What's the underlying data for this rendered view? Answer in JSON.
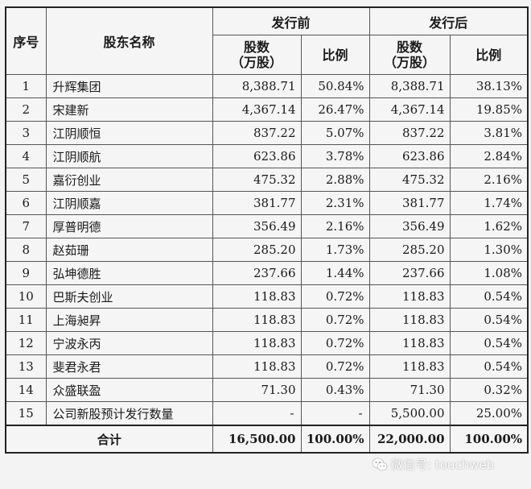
{
  "header": {
    "seq": "序号",
    "holder": "股东名称",
    "before": "发行前",
    "after": "发行后",
    "shares_line1": "股数",
    "shares_line2": "（万股）",
    "ratio": "比例"
  },
  "rows": [
    {
      "no": "1",
      "name": "升辉集团",
      "before_shares": "8,388.71",
      "before_ratio": "50.84%",
      "after_shares": "8,388.71",
      "after_ratio": "38.13%"
    },
    {
      "no": "2",
      "name": "宋建新",
      "before_shares": "4,367.14",
      "before_ratio": "26.47%",
      "after_shares": "4,367.14",
      "after_ratio": "19.85%"
    },
    {
      "no": "3",
      "name": "江阴顺恒",
      "before_shares": "837.22",
      "before_ratio": "5.07%",
      "after_shares": "837.22",
      "after_ratio": "3.81%"
    },
    {
      "no": "4",
      "name": "江阴顺航",
      "before_shares": "623.86",
      "before_ratio": "3.78%",
      "after_shares": "623.86",
      "after_ratio": "2.84%"
    },
    {
      "no": "5",
      "name": "嘉衍创业",
      "before_shares": "475.32",
      "before_ratio": "2.88%",
      "after_shares": "475.32",
      "after_ratio": "2.16%"
    },
    {
      "no": "6",
      "name": "江阴顺嘉",
      "before_shares": "381.77",
      "before_ratio": "2.31%",
      "after_shares": "381.77",
      "after_ratio": "1.74%"
    },
    {
      "no": "7",
      "name": "厚普明德",
      "before_shares": "356.49",
      "before_ratio": "2.16%",
      "after_shares": "356.49",
      "after_ratio": "1.62%"
    },
    {
      "no": "8",
      "name": "赵茹珊",
      "before_shares": "285.20",
      "before_ratio": "1.73%",
      "after_shares": "285.20",
      "after_ratio": "1.30%"
    },
    {
      "no": "9",
      "name": "弘坤德胜",
      "before_shares": "237.66",
      "before_ratio": "1.44%",
      "after_shares": "237.66",
      "after_ratio": "1.08%"
    },
    {
      "no": "10",
      "name": "巴斯夫创业",
      "before_shares": "118.83",
      "before_ratio": "0.72%",
      "after_shares": "118.83",
      "after_ratio": "0.54%"
    },
    {
      "no": "11",
      "name": "上海昶昇",
      "before_shares": "118.83",
      "before_ratio": "0.72%",
      "after_shares": "118.83",
      "after_ratio": "0.54%"
    },
    {
      "no": "12",
      "name": "宁波永丙",
      "before_shares": "118.83",
      "before_ratio": "0.72%",
      "after_shares": "118.83",
      "after_ratio": "0.54%"
    },
    {
      "no": "13",
      "name": "斐君永君",
      "before_shares": "118.83",
      "before_ratio": "0.72%",
      "after_shares": "118.83",
      "after_ratio": "0.54%"
    },
    {
      "no": "14",
      "name": "众盛联盈",
      "before_shares": "71.30",
      "before_ratio": "0.43%",
      "after_shares": "71.30",
      "after_ratio": "0.32%"
    },
    {
      "no": "15",
      "name": "公司新股预计发行数量",
      "before_shares": "-",
      "before_ratio": "-",
      "after_shares": "5,500.00",
      "after_ratio": "25.00%"
    }
  ],
  "total": {
    "label": "合计",
    "before_shares": "16,500.00",
    "before_ratio": "100.00%",
    "after_shares": "22,000.00",
    "after_ratio": "100.00%"
  },
  "watermark": {
    "text": "微信号: touchweb",
    "icon": "wechat-icon"
  }
}
